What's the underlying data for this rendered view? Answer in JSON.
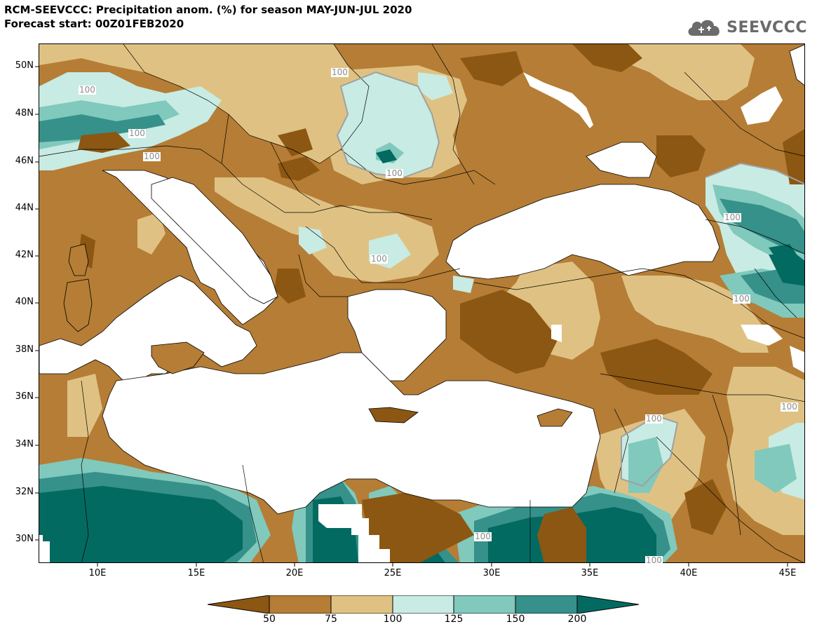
{
  "title": {
    "line1": "RCM-SEEVCCC: Precipitation anom. (%) for season MAY-JUN-JUL 2020",
    "line2": "Forecast start: 00Z01FEB2020"
  },
  "logo": {
    "text": "SEEVCCC",
    "icon": "cloud-icon",
    "color": "#6b6b6b"
  },
  "axes": {
    "lat_labels": [
      "50N",
      "48N",
      "46N",
      "44N",
      "42N",
      "40N",
      "38N",
      "36N",
      "34N",
      "32N",
      "30N"
    ],
    "lon_labels": [
      "10E",
      "15E",
      "20E",
      "25E",
      "30E",
      "35E",
      "40E",
      "45E"
    ]
  },
  "contour_labels": [
    "100",
    "100",
    "100",
    "100",
    "100",
    "100",
    "100",
    "100",
    "100",
    "100",
    "100",
    "100"
  ],
  "legend": {
    "labels": [
      "50",
      "75",
      "100",
      "125",
      "150",
      "200"
    ],
    "classes": [
      "<50",
      "50-75",
      "75-100",
      "100-125",
      "125-150",
      "150-200",
      ">200"
    ],
    "colors": [
      "#8c5712",
      "#b57d35",
      "#dfc283",
      "#c8ebe3",
      "#80c9bc",
      "#35918a",
      "#036a61"
    ]
  },
  "colors": {
    "sea": "#ffffff",
    "land_default": "#b57d35"
  }
}
